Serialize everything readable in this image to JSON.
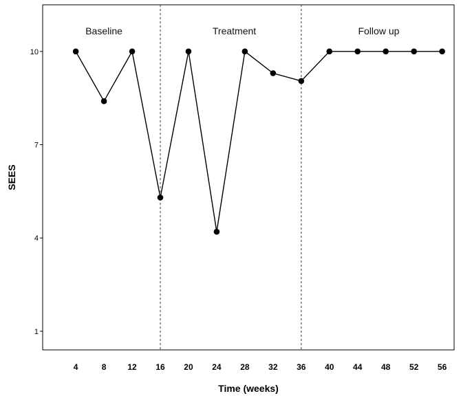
{
  "chart_data": {
    "type": "line",
    "xlabel": "Time (weeks)",
    "ylabel": "SEES",
    "x": [
      4,
      8,
      12,
      16,
      20,
      24,
      28,
      32,
      36,
      40,
      44,
      48,
      52,
      56
    ],
    "series": [
      {
        "values": [
          10,
          8.4,
          10,
          5.3,
          10,
          4.2,
          10,
          9.3,
          9.05,
          10,
          10,
          10,
          10,
          10
        ]
      }
    ],
    "xticks": [
      4,
      8,
      12,
      16,
      20,
      24,
      28,
      32,
      36,
      40,
      44,
      48,
      52,
      56
    ],
    "yticks": [
      1,
      4,
      7,
      10
    ],
    "xlim": [
      -0.7,
      57.7
    ],
    "ylim": [
      0.4,
      11.5
    ],
    "phase_lines": [
      16,
      36
    ],
    "phases": [
      {
        "label": "Baseline",
        "x": 8
      },
      {
        "label": "Treatment",
        "x": 26.5
      },
      {
        "label": "Follow up",
        "x": 47
      }
    ],
    "grid": false,
    "legend": "none"
  }
}
